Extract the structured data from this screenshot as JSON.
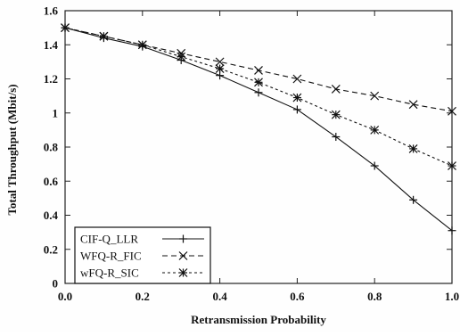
{
  "chart_data": {
    "type": "line",
    "title": "",
    "xlabel": "Retransmission Probability",
    "ylabel": "Total Throughput (Mbit/s)",
    "xlim": [
      0.0,
      1.0
    ],
    "ylim": [
      0,
      1.6
    ],
    "x_ticks": [
      0.0,
      0.2,
      0.4,
      0.6,
      0.8,
      1.0
    ],
    "x_tick_labels": [
      "0.0",
      "0.2",
      "0.4",
      "0.6",
      "0.8",
      "1.0"
    ],
    "y_ticks": [
      0,
      0.2,
      0.4,
      0.6,
      0.8,
      1,
      1.2,
      1.4,
      1.6
    ],
    "y_tick_labels": [
      "0",
      "0.2",
      "0.4",
      "0.6",
      "0.8",
      "1",
      "1.2",
      "1.4",
      "1.6"
    ],
    "grid": false,
    "legend_position": "bottom-left",
    "x": [
      0.0,
      0.1,
      0.2,
      0.3,
      0.4,
      0.5,
      0.6,
      0.7,
      0.8,
      0.9,
      1.0
    ],
    "series": [
      {
        "name": "CIF-Q_LLR",
        "line_style": "solid",
        "marker": "plus",
        "values": [
          1.5,
          1.44,
          1.39,
          1.31,
          1.22,
          1.12,
          1.02,
          0.86,
          0.69,
          0.49,
          0.31
        ]
      },
      {
        "name": "WFQ-R_FIC",
        "line_style": "dashed",
        "marker": "cross",
        "values": [
          1.5,
          1.45,
          1.4,
          1.35,
          1.3,
          1.25,
          1.2,
          1.14,
          1.1,
          1.05,
          1.01
        ]
      },
      {
        "name": "wFQ-R_SIC",
        "line_style": "dotted",
        "marker": "asterisk",
        "values": [
          1.5,
          1.45,
          1.4,
          1.33,
          1.26,
          1.18,
          1.09,
          0.99,
          0.9,
          0.79,
          0.69
        ]
      }
    ]
  }
}
